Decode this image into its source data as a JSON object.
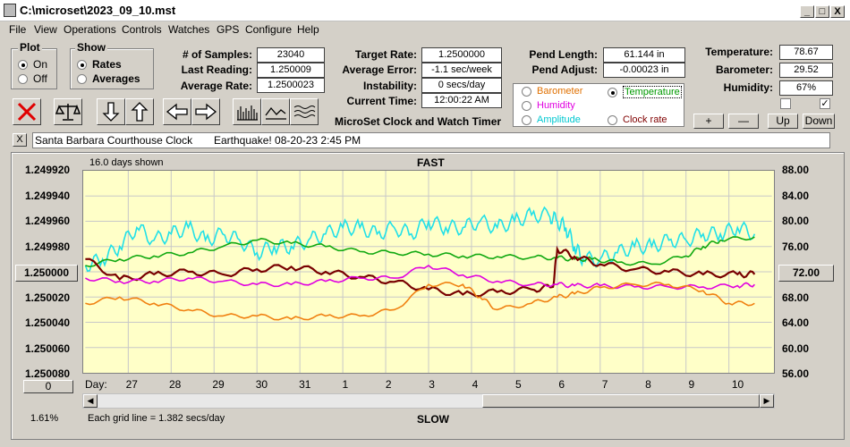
{
  "window": {
    "title": "C:\\microset\\2023_09_10.mst",
    "min": "_",
    "max": "□",
    "close": "X"
  },
  "menu": [
    "File",
    "View",
    "Operations",
    "Controls",
    "Watches",
    "GPS",
    "Configure",
    "Help"
  ],
  "plot_group": {
    "title": "Plot",
    "on": "On",
    "off": "Off",
    "selected": "On"
  },
  "show_group": {
    "title": "Show",
    "rates": "Rates",
    "averages": "Averages",
    "selected": "Rates"
  },
  "stats": {
    "samples_label": "# of Samples:",
    "samples": "23040",
    "last_reading_label": "Last Reading:",
    "last_reading": "1.250009",
    "average_rate_label": "Average Rate:",
    "average_rate": "1.2500023",
    "target_rate_label": "Target Rate:",
    "target_rate": "1.2500000",
    "average_error_label": "Average Error:",
    "average_error": "-1.1 sec/week",
    "instability_label": "Instability:",
    "instability": "0 secs/day",
    "current_time_label": "Current Time:",
    "current_time": "12:00:22 AM",
    "pend_length_label": "Pend Length:",
    "pend_length": "61.144 in",
    "pend_adjust_label": "Pend Adjust:",
    "pend_adjust": "-0.00023 in"
  },
  "env": {
    "temperature_label": "Temperature:",
    "temperature": "78.67",
    "barometer_label": "Barometer:",
    "barometer": "29.52",
    "humidity_label": "Humidity:",
    "humidity": "67%"
  },
  "subtitle": "MicroSet Clock and Watch Timer",
  "sensor_options": {
    "barometer": "Barometer",
    "temperature": "Temperature",
    "humidity": "Humidity",
    "amplitude": "Amplitude",
    "clock_rate": "Clock rate",
    "selected": "Temperature",
    "colors": {
      "barometer": "#e07000",
      "temperature": "#009900",
      "humidity": "#e000e0",
      "amplitude": "#00c8d0",
      "clock_rate": "#800000"
    }
  },
  "adjust_buttons": {
    "plus": "+",
    "minus": "—",
    "up": "Up",
    "down": "Down"
  },
  "toolbar_icons": [
    "cancel-icon",
    "scale-icon",
    "arrow-down-icon",
    "arrow-up-icon",
    "arrow-left-icon",
    "arrow-right-icon",
    "histogram-icon",
    "wave-icon",
    "multiwave-icon"
  ],
  "status_line": {
    "clock_name": "Santa Barbara Courthouse Clock",
    "note": "Earthquake! 08-20-23  2:45 PM",
    "close": "X"
  },
  "graph": {
    "days_shown": "16.0 days shown",
    "top_label": "FAST",
    "bottom_label": "SLOW",
    "grid_note": "Each grid line = 1.382 secs/day",
    "percent": "1.61%",
    "day_label": "Day:",
    "left_button": "1.250000",
    "right_button": "72.00",
    "zero_button": "0"
  },
  "chart_data": {
    "type": "line",
    "title": "",
    "xlabel": "Day:",
    "x_ticks": [
      "27",
      "28",
      "29",
      "30",
      "31",
      "1",
      "2",
      "3",
      "4",
      "5",
      "6",
      "7",
      "8",
      "9",
      "10"
    ],
    "y_left_ticks": [
      "1.249920",
      "1.249940",
      "1.249960",
      "1.249980",
      "1.250000",
      "1.250020",
      "1.250040",
      "1.250060",
      "1.250080"
    ],
    "y_right_ticks": [
      "88.00",
      "84.00",
      "80.00",
      "76.00",
      "72.00",
      "68.00",
      "64.00",
      "60.00",
      "56.00"
    ],
    "ylim_left": [
      1.24992,
      1.25008
    ],
    "ylim_right": [
      56,
      88
    ],
    "xlim_days": [
      0,
      16
    ],
    "grid": true,
    "series": [
      {
        "name": "Amplitude",
        "color": "#20e0e8",
        "axis": "right",
        "x": [
          0,
          0.4,
          0.8,
          1.2,
          1.6,
          2.0,
          2.4,
          2.8,
          3.2,
          3.6,
          4.0,
          4.4,
          4.8,
          5.2,
          5.6,
          6.0,
          6.4,
          6.8,
          7.2,
          7.6,
          8.0,
          8.4,
          8.8,
          9.2,
          9.6,
          10.0,
          10.4,
          10.8,
          11.0,
          11.2,
          11.4,
          11.6,
          12.0,
          12.4,
          12.8,
          13.2,
          13.6,
          14.0,
          14.4,
          14.8,
          15.2,
          15.6
        ],
        "y": [
          73,
          74,
          76,
          79,
          77,
          78,
          79,
          77,
          78,
          77,
          75,
          76,
          76,
          77,
          78,
          79,
          79,
          78,
          79,
          78,
          80,
          79,
          79,
          80,
          79,
          80,
          81,
          81,
          80,
          79,
          76,
          74,
          74,
          75,
          76,
          76,
          77,
          77,
          78,
          78,
          79,
          78
        ]
      },
      {
        "name": "Temperature",
        "color": "#10a810",
        "axis": "right",
        "x": [
          0,
          0.8,
          1.6,
          2.4,
          3.2,
          4.0,
          4.8,
          5.6,
          6.4,
          7.2,
          8.0,
          8.8,
          9.6,
          10.4,
          11.0,
          11.4,
          11.8,
          12.4,
          13.2,
          14.0,
          14.4,
          14.8,
          15.6
        ],
        "y": [
          73,
          74,
          74.5,
          75,
          76,
          77,
          76.5,
          76,
          75.2,
          75,
          74.8,
          74.5,
          74.4,
          74.3,
          74.2,
          74.0,
          74.0,
          73.5,
          73.2,
          74.5,
          76,
          77,
          77.5
        ]
      },
      {
        "name": "Clock rate",
        "color": "#780000",
        "axis": "left",
        "x": [
          0,
          0.8,
          1.6,
          2.4,
          3.2,
          4.0,
          4.8,
          5.6,
          6.4,
          7.2,
          8.0,
          8.8,
          9.6,
          10.4,
          10.9,
          11.0,
          11.4,
          12.0,
          12.8,
          13.6,
          14.4,
          15.2,
          15.6
        ],
        "y": [
          1.24999,
          1.250006,
          1.250002,
          1.25,
          1.250002,
          1.249998,
          1.249996,
          1.25,
          1.250004,
          1.250008,
          1.250014,
          1.250018,
          1.250016,
          1.250014,
          1.250012,
          1.249982,
          1.249988,
          1.249994,
          1.249998,
          1.25,
          1.250002,
          1.250002,
          1.250002
        ]
      },
      {
        "name": "Humidity",
        "color": "#e000e0",
        "axis": "right",
        "x": [
          0,
          0.8,
          1.6,
          2.4,
          3.2,
          4.0,
          4.8,
          5.6,
          6.4,
          7.2,
          8.0,
          8.8,
          9.6,
          10.4,
          11.0,
          11.4,
          12.0,
          12.8,
          13.6,
          14.4,
          15.2,
          15.6
        ],
        "y": [
          71,
          70.5,
          70.5,
          71,
          70.5,
          70,
          70,
          70.5,
          71,
          71,
          73,
          71.5,
          70.5,
          70,
          70,
          69.8,
          69.8,
          69.6,
          69.6,
          69.6,
          69.8,
          70
        ]
      },
      {
        "name": "Barometer",
        "color": "#f08010",
        "axis": "right",
        "x": [
          0,
          0.8,
          1.6,
          2.4,
          3.2,
          4.0,
          4.8,
          5.6,
          6.4,
          7.2,
          8.0,
          8.8,
          9.2,
          9.6,
          10.4,
          11.0,
          11.4,
          12.0,
          12.8,
          13.6,
          14.4,
          15.0,
          15.6
        ],
        "y": [
          67,
          68,
          67,
          66,
          65,
          65,
          64.5,
          65,
          65,
          66,
          70,
          70,
          68,
          66,
          67,
          68,
          68.5,
          69.5,
          70,
          70,
          69,
          67,
          67
        ]
      }
    ]
  }
}
